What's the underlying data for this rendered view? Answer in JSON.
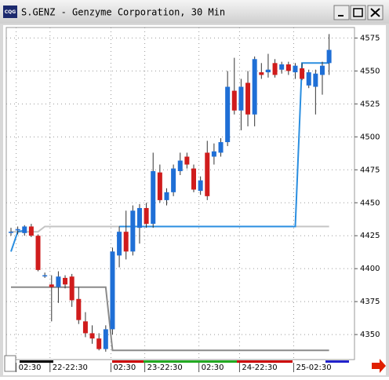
{
  "window": {
    "icon_text": "CQG",
    "title": "S.GENZ - Genzyme Corporation, 30 Min"
  },
  "chart_data": {
    "type": "candlestick",
    "categories": [
      null,
      "02:30",
      null,
      null,
      null,
      null,
      "22-22:30",
      null,
      null,
      null,
      null,
      null,
      null,
      null,
      null,
      "02:30",
      null,
      null,
      null,
      null,
      "23-22:30",
      null,
      null,
      null,
      null,
      null,
      null,
      null,
      "02:30",
      null,
      null,
      null,
      null,
      null,
      "24-22:30",
      null,
      null,
      null,
      null,
      null,
      null,
      null,
      "25-02:30",
      null,
      null,
      null,
      null,
      null
    ],
    "open": [
      4428,
      4429,
      4427,
      4432,
      4425,
      4395,
      4388,
      4386,
      4393,
      4394,
      4377,
      4360,
      4351,
      4347,
      4339,
      4354,
      4410,
      4428,
      4413,
      4431,
      4446,
      4434,
      4473,
      4452,
      4458,
      4474,
      4485,
      4476,
      4459,
      4488,
      4485,
      4488,
      4496,
      4535,
      4520,
      4541,
      4517,
      4549,
      4549,
      4556,
      4551,
      4555,
      4549,
      4552,
      4539,
      4538,
      4547,
      4556
    ],
    "high": [
      4431,
      4432,
      4433,
      4434,
      4426,
      4397,
      4395,
      4398,
      4395,
      4396,
      4386,
      4367,
      4357,
      4351,
      4357,
      4416,
      4432,
      4444,
      4448,
      4449,
      4450,
      4488,
      4479,
      4461,
      4479,
      4488,
      4488,
      4479,
      4470,
      4497,
      4495,
      4499,
      4550,
      4560,
      4544,
      4550,
      4561,
      4556,
      4563,
      4559,
      4557,
      4557,
      4556,
      4556,
      4551,
      4551,
      4557,
      4578
    ],
    "low": [
      4425,
      4426,
      4425,
      4424,
      4398,
      4393,
      4360,
      4374,
      4385,
      4371,
      4358,
      4348,
      4343,
      4338,
      4337,
      4350,
      4401,
      4407,
      4410,
      4419,
      4431,
      4431,
      4450,
      4448,
      4455,
      4471,
      4476,
      4458,
      4456,
      4452,
      4479,
      4485,
      4493,
      4517,
      4505,
      4508,
      4508,
      4544,
      4545,
      4545,
      4548,
      4547,
      4544,
      4543,
      4537,
      4517,
      4532,
      4547
    ],
    "close": [
      4428,
      4430,
      4432,
      4425,
      4399,
      4395,
      4386,
      4394,
      4388,
      4376,
      4361,
      4351,
      4347,
      4339,
      4354,
      4413,
      4428,
      4413,
      4444,
      4446,
      4434,
      4474,
      4452,
      4458,
      4476,
      4482,
      4479,
      4460,
      4467,
      4455,
      4489,
      4496,
      4538,
      4520,
      4538,
      4517,
      4559,
      4547,
      4551,
      4547,
      4555,
      4550,
      4554,
      4544,
      4549,
      4548,
      4554,
      4566
    ],
    "up_color": "#1f6fd6",
    "down_color": "#d01c1c",
    "indicators": [
      {
        "color": "#c4c4c4",
        "values": [
          4428,
          4428,
          4428,
          4428,
          4428,
          4432,
          4432,
          4432,
          4432,
          4432,
          4432,
          4432,
          4432,
          4432,
          4432,
          4432,
          4432,
          4432,
          4432,
          4432,
          4432,
          4432,
          4432,
          4432,
          4432,
          4432,
          4432,
          4432,
          4432,
          4432,
          4432,
          4432,
          4432,
          4432,
          4432,
          4432,
          4432,
          4432,
          4432,
          4432,
          4432,
          4432,
          4432,
          4432,
          4432,
          4432,
          4432,
          4432
        ]
      },
      {
        "color": "#8a8a8a",
        "values": [
          4386,
          4386,
          4386,
          4386,
          4386,
          4386,
          4386,
          4386,
          4386,
          4386,
          4386,
          4386,
          4386,
          4386,
          4386,
          4338,
          4338,
          4338,
          4338,
          4338,
          4338,
          4338,
          4338,
          4338,
          4338,
          4338,
          4338,
          4338,
          4338,
          4338,
          4338,
          4338,
          4338,
          4338,
          4338,
          4338,
          4338,
          4338,
          4338,
          4338,
          4338,
          4338,
          4338,
          4338,
          4338,
          4338,
          4338,
          4338
        ]
      },
      {
        "color": "#2a8ee0",
        "values": [
          4413,
          4428,
          4429,
          null,
          null,
          null,
          null,
          null,
          null,
          null,
          null,
          null,
          null,
          null,
          null,
          null,
          4432,
          4432,
          4432,
          4432,
          4432,
          4432,
          4432,
          4432,
          4432,
          4432,
          4432,
          4432,
          4432,
          4432,
          4432,
          4432,
          4432,
          4432,
          4432,
          4432,
          4432,
          4432,
          4432,
          4432,
          4432,
          4432,
          4432,
          4556,
          4556,
          4556,
          4556,
          4556
        ]
      }
    ],
    "ylim": [
      4331,
      4583
    ],
    "yticks": [
      4350,
      4375,
      4400,
      4425,
      4450,
      4475,
      4500,
      4525,
      4550,
      4575
    ],
    "grid": true
  }
}
